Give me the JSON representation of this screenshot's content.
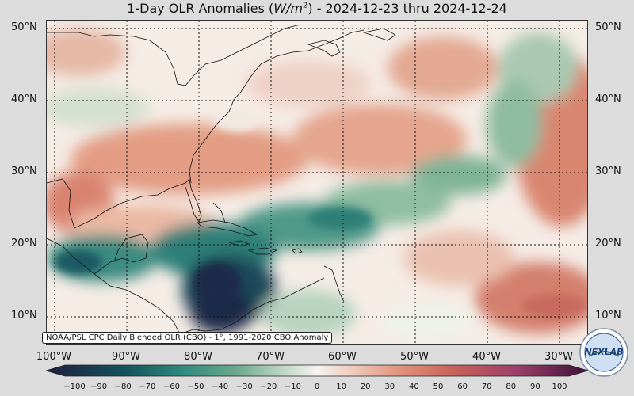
{
  "title_prefix": "1-Day OLR Anomalies (",
  "title_unit_base": "W/m",
  "title_unit_exp": "2",
  "title_suffix": ") - 2024-12-23 thru 2024-12-24",
  "source_note": "NOAA/PSL CPC Daily Blended OLR (CBO) - 1°, 1991-2020 CBO Anomaly",
  "logo_text": "NEXLAB",
  "lat_labels": [
    "50°N",
    "40°N",
    "30°N",
    "20°N",
    "10°N"
  ],
  "lon_labels": [
    "100°W",
    "90°W",
    "80°W",
    "70°W",
    "60°W",
    "50°W",
    "40°W",
    "30°W"
  ],
  "colorbar": {
    "ticks": [
      "−100",
      "−90",
      "−80",
      "−70",
      "−60",
      "−50",
      "−40",
      "−30",
      "−20",
      "−10",
      "0",
      "10",
      "20",
      "30",
      "40",
      "50",
      "60",
      "70",
      "80",
      "90",
      "100"
    ],
    "colors": {
      "min": "#1f1d3f",
      "deep_teal": "#14555c",
      "teal": "#2f8a7e",
      "green": "#6aa88c",
      "pale_green": "#b8d3bf",
      "neutral": "#f7f3ef",
      "pale_red": "#efc8b7",
      "salmon": "#e0957c",
      "red": "#c9625a",
      "magenta": "#9c3e6a",
      "max": "#3c1236"
    }
  },
  "map_colors": {
    "ocean_neutral": "#f5ece6",
    "coast": "#111111",
    "grid": "#111111"
  }
}
